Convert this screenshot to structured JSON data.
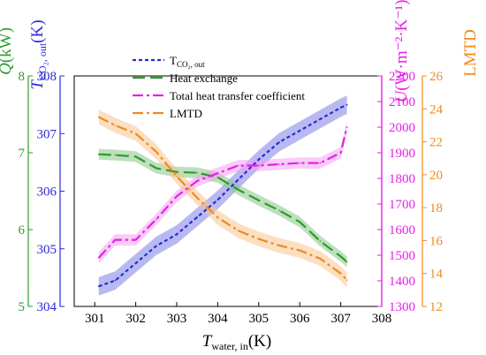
{
  "chart_data": {
    "type": "line",
    "x": [
      301.1,
      301.5,
      302.0,
      302.5,
      303.0,
      303.5,
      304.0,
      304.5,
      305.0,
      305.5,
      306.0,
      306.5,
      307.0,
      307.15
    ],
    "xlabel": {
      "main": "T",
      "sub": "water,   in",
      "unit": "(K)"
    },
    "xlim": [
      300.5,
      308
    ],
    "xticks": [
      "301",
      "302",
      "303",
      "304",
      "305",
      "306",
      "307",
      "308"
    ],
    "axes": {
      "Q": {
        "label_main": "Q",
        "label_unit": "(kW)",
        "color": "#2e9b2e",
        "ylim": [
          5,
          8
        ],
        "ticks": [
          "5",
          "6",
          "7",
          "8"
        ]
      },
      "T": {
        "label_main": "T",
        "label_sub": "CO₂,  out",
        "label_unit": "(K)",
        "color": "#2a2ad8",
        "ylim": [
          304,
          308
        ],
        "ticks": [
          "304",
          "305",
          "306",
          "307",
          "308"
        ]
      },
      "U": {
        "label_main": "U",
        "label_unit": "(W·m⁻²·K⁻¹)",
        "color": "#e81ee8",
        "ylim": [
          1300,
          2200
        ],
        "ticks": [
          "1300",
          "1400",
          "1500",
          "1600",
          "1700",
          "1800",
          "1900",
          "2000",
          "2100",
          "2200"
        ]
      },
      "LMTD": {
        "label_main": "LMTD",
        "color": "#f08a1e",
        "ylim": [
          12,
          26
        ],
        "ticks": [
          "12",
          "14",
          "16",
          "18",
          "20",
          "22",
          "24",
          "26"
        ]
      }
    },
    "series": [
      {
        "name_main": "T",
        "name_sub": "CO₂,  out",
        "axis": "T",
        "color": "#2a2ad8",
        "dash": "4,3",
        "band_color": "#7f7fe6",
        "values": [
          304.35,
          304.45,
          304.75,
          305.05,
          305.25,
          305.55,
          305.85,
          306.2,
          306.55,
          306.85,
          307.05,
          307.25,
          307.45,
          307.5
        ]
      },
      {
        "name": "Heat exchange",
        "axis": "Q",
        "color": "#2e9b2e",
        "dash": "14,6",
        "band_color": "#86c786",
        "values": [
          6.98,
          6.97,
          6.95,
          6.8,
          6.75,
          6.74,
          6.68,
          6.52,
          6.38,
          6.25,
          6.1,
          5.85,
          5.65,
          5.58
        ]
      },
      {
        "name": "Total heat transfer coefficient",
        "axis": "U",
        "color": "#e81ee8",
        "dash": "12,4,3,4",
        "band_color": "#f3a1f3",
        "values": [
          1490,
          1560,
          1560,
          1640,
          1730,
          1790,
          1820,
          1850,
          1850,
          1855,
          1860,
          1860,
          1900,
          2000
        ]
      },
      {
        "name": "LMTD",
        "axis": "LMTD",
        "color": "#f08a1e",
        "dash": "12,4,3,4",
        "band_color": "#f7c48f",
        "values": [
          23.5,
          23.0,
          22.5,
          21.4,
          19.9,
          18.6,
          17.4,
          16.6,
          16.1,
          15.7,
          15.4,
          14.9,
          14.0,
          13.6
        ]
      }
    ]
  }
}
